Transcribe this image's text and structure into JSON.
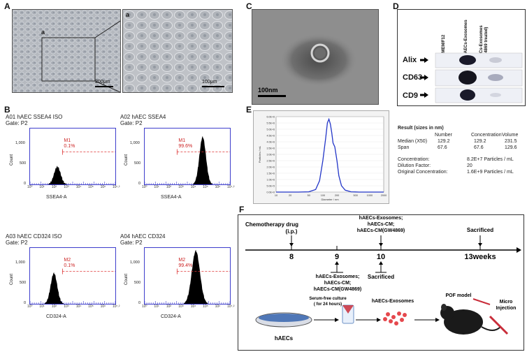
{
  "panels": {
    "A": "A",
    "B": "B",
    "C": "C",
    "D": "D",
    "E": "E",
    "F": "F"
  },
  "panel_a": {
    "inset_label_left": "a",
    "inset_label_right": "a",
    "scale_left": "200μm",
    "scale_right": "100μm"
  },
  "panel_b": {
    "plots": [
      {
        "title": "A01 hAEC SSEA4 ISO",
        "gate": "Gate: P2",
        "marker": "M1",
        "percent": "0.1%",
        "xaxis": "SSEA4-A",
        "peak": 0.32,
        "height": 0.32,
        "width": 0.08
      },
      {
        "title": "A02 hAEC SSEA4",
        "gate": "Gate: P2",
        "marker": "M1",
        "percent": "99.6%",
        "xaxis": "SSEA4-A",
        "peak": 0.68,
        "height": 0.85,
        "width": 0.08
      },
      {
        "title": "A03 hAEC CD324 ISO",
        "gate": "Gate: P2",
        "marker": "M2",
        "percent": "0.1%",
        "xaxis": "CD324-A",
        "peak": 0.28,
        "height": 0.55,
        "width": 0.08
      },
      {
        "title": "A04 hAEC CD324",
        "gate": "Gate: P2",
        "marker": "M2",
        "percent": "99.4%",
        "xaxis": "CD324-A",
        "peak": 0.6,
        "height": 0.95,
        "width": 0.1
      }
    ],
    "y_label": "Count",
    "y_ticks": [
      "0",
      "500",
      "1,000"
    ],
    "x_ticks": [
      "10^0",
      "10^1",
      "10^2",
      "10^3",
      "10^4",
      "10^5",
      "10^6",
      "10^7.2"
    ]
  },
  "panel_c": {
    "scale": "100nm"
  },
  "panel_d": {
    "lanes": [
      "DMEM/F12",
      "hAECs-Exosomes",
      "hAECs-Exosomes (GW4869 treated)"
    ],
    "rows": [
      "Alix",
      "CD63",
      "CD9"
    ]
  },
  "panel_e": {
    "chart_data": {
      "type": "line",
      "title": "",
      "xlabel": "Diameter / nm",
      "ylabel": "Particles / mL",
      "x_scale": "log",
      "xlim": [
        10,
        2000
      ],
      "ylim": [
        0,
        6000000
      ],
      "y_ticks": [
        "0.0E+0",
        "5.0E+5",
        "1.0E+6",
        "1.5E+6",
        "2.0E+6",
        "2.5E+6",
        "3.0E+6",
        "3.5E+6",
        "4.0E+6",
        "4.5E+6",
        "5.0E+6",
        "5.5E+6",
        "6.0E+6"
      ],
      "x_ticks": [
        "10",
        "20",
        "50",
        "100",
        "200",
        "500",
        "1000",
        "2000"
      ],
      "x": [
        10,
        30,
        50,
        70,
        85,
        100,
        115,
        125,
        135,
        145,
        155,
        165,
        180,
        200,
        220,
        250,
        300,
        400,
        600,
        1000,
        2000
      ],
      "values": [
        0,
        0,
        20000,
        200000,
        900000,
        2500000,
        4300000,
        5500000,
        5800000,
        5400000,
        4700000,
        3900000,
        3600000,
        2500000,
        1300000,
        500000,
        150000,
        20000,
        0,
        0,
        0
      ]
    },
    "results": {
      "heading": "Result (sizes in nm)",
      "cols": [
        "Number",
        "Concentration",
        "Volume"
      ],
      "rows": [
        {
          "label": "Median (X50)",
          "v": [
            "129.2",
            "129.2",
            "231.5"
          ]
        },
        {
          "label": "Span",
          "v": [
            "67.6",
            "67.6",
            "129.6"
          ]
        }
      ],
      "extra": [
        {
          "label": "Concentration:",
          "value": "8.2E+7 Particles / mL"
        },
        {
          "label": "Dilution Factor:",
          "value": "20"
        },
        {
          "label": "Original Concentration:",
          "value": "1.6E+9 Particles / mL"
        }
      ]
    }
  },
  "panel_f": {
    "chemo": "Chemotherapy drug",
    "ip": "(i.p.)",
    "above10": [
      "hAECs-Exosomes;",
      "hAECs-CM;",
      "hAECs-CM(GW4869)"
    ],
    "sacrificed_top": "Sacrificed",
    "ticks": [
      "8",
      "9",
      "10",
      "13weeks"
    ],
    "below9": [
      "hAECs-Exosomes;",
      "hAECs-CM;",
      "hAECs-CM(GW4869)"
    ],
    "sacrificed_bottom": "Sacrificed",
    "serum_free": [
      "Serum-free culture",
      "( for 24 hours)"
    ],
    "exosomes_label": "hAECs-Exosomes",
    "haecs": "hAECs",
    "pof": "POF model",
    "micro": [
      "Micro",
      "Injection"
    ]
  }
}
